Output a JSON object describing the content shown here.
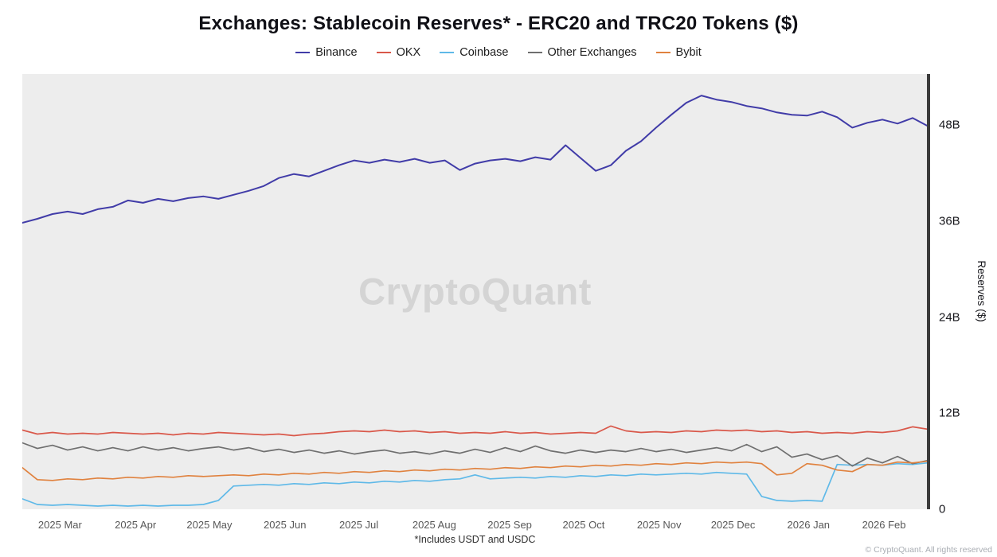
{
  "header": {
    "title": "Exchanges: Stablecoin Reserves* - ERC20 and TRC20 Tokens ($)"
  },
  "chart_data": {
    "type": "line",
    "title": "Exchanges: Stablecoin Reserves* - ERC20 and TRC20 Tokens ($)",
    "watermark": "CryptoQuant",
    "ylabel": "Reserves ($)",
    "unit": "billions USD",
    "grid": false,
    "legend_position": "top",
    "ylim": [
      0,
      54.4
    ],
    "y_ticks": [
      {
        "label": "0",
        "value": 0
      },
      {
        "label": "12B",
        "value": 12
      },
      {
        "label": "24B",
        "value": 24
      },
      {
        "label": "36B",
        "value": 36
      },
      {
        "label": "48B",
        "value": 48
      }
    ],
    "x_ticks": [
      {
        "label": "2025 Mar",
        "pos": 2.5
      },
      {
        "label": "2025 Apr",
        "pos": 7.5
      },
      {
        "label": "2025 May",
        "pos": 12.4
      },
      {
        "label": "2025 Jun",
        "pos": 17.4
      },
      {
        "label": "2025 Jul",
        "pos": 22.3
      },
      {
        "label": "2025 Aug",
        "pos": 27.3
      },
      {
        "label": "2025 Sep",
        "pos": 32.3
      },
      {
        "label": "2025 Oct",
        "pos": 37.2
      },
      {
        "label": "2025 Nov",
        "pos": 42.2
      },
      {
        "label": "2025 Dec",
        "pos": 47.1
      },
      {
        "label": "2026 Jan",
        "pos": 52.1
      },
      {
        "label": "2026 Feb",
        "pos": 57.1
      }
    ],
    "series": [
      {
        "name": "Binance",
        "color": "#413CA8",
        "stroke_width": 2,
        "values": [
          35.8,
          36.3,
          36.9,
          37.2,
          36.9,
          37.5,
          37.8,
          38.6,
          38.3,
          38.8,
          38.5,
          38.9,
          39.1,
          38.8,
          39.3,
          39.8,
          40.4,
          41.4,
          41.9,
          41.6,
          42.3,
          43.0,
          43.6,
          43.3,
          43.7,
          43.4,
          43.8,
          43.3,
          43.6,
          42.4,
          43.2,
          43.6,
          43.8,
          43.5,
          44.0,
          43.7,
          45.5,
          43.9,
          42.3,
          43.0,
          44.8,
          46.0,
          47.7,
          49.3,
          50.8,
          51.7,
          51.2,
          50.9,
          50.4,
          50.1,
          49.6,
          49.3,
          49.2,
          49.7,
          49.0,
          47.7,
          48.3,
          48.7,
          48.2,
          48.9,
          47.9
        ]
      },
      {
        "name": "OKX",
        "color": "#D9584A",
        "stroke_width": 1.7,
        "values": [
          9.9,
          9.4,
          9.6,
          9.4,
          9.5,
          9.4,
          9.6,
          9.5,
          9.4,
          9.5,
          9.3,
          9.5,
          9.4,
          9.6,
          9.5,
          9.4,
          9.3,
          9.4,
          9.2,
          9.4,
          9.5,
          9.7,
          9.8,
          9.7,
          9.9,
          9.7,
          9.8,
          9.6,
          9.7,
          9.5,
          9.6,
          9.5,
          9.7,
          9.5,
          9.6,
          9.4,
          9.5,
          9.6,
          9.5,
          10.4,
          9.8,
          9.6,
          9.7,
          9.6,
          9.8,
          9.7,
          9.9,
          9.8,
          9.9,
          9.7,
          9.8,
          9.6,
          9.7,
          9.5,
          9.6,
          9.5,
          9.7,
          9.6,
          9.8,
          10.3,
          10.0
        ]
      },
      {
        "name": "Coinbase",
        "color": "#5FB9E8",
        "stroke_width": 1.7,
        "values": [
          1.3,
          0.6,
          0.5,
          0.6,
          0.5,
          0.4,
          0.5,
          0.4,
          0.5,
          0.4,
          0.5,
          0.5,
          0.6,
          1.1,
          2.9,
          3.0,
          3.1,
          3.0,
          3.2,
          3.1,
          3.3,
          3.2,
          3.4,
          3.3,
          3.5,
          3.4,
          3.6,
          3.5,
          3.7,
          3.8,
          4.3,
          3.8,
          3.9,
          4.0,
          3.9,
          4.1,
          4.0,
          4.2,
          4.1,
          4.3,
          4.2,
          4.4,
          4.3,
          4.4,
          4.5,
          4.4,
          4.6,
          4.5,
          4.4,
          1.6,
          1.1,
          1.0,
          1.1,
          1.0,
          5.6,
          5.5,
          5.6,
          5.5,
          5.7,
          5.6,
          5.8
        ]
      },
      {
        "name": "Other Exchanges",
        "color": "#6F6F6F",
        "stroke_width": 1.7,
        "values": [
          8.3,
          7.6,
          8.0,
          7.4,
          7.8,
          7.3,
          7.7,
          7.3,
          7.8,
          7.4,
          7.7,
          7.3,
          7.6,
          7.8,
          7.4,
          7.7,
          7.2,
          7.5,
          7.1,
          7.4,
          7.0,
          7.3,
          6.9,
          7.2,
          7.4,
          7.0,
          7.2,
          6.9,
          7.3,
          7.0,
          7.5,
          7.1,
          7.7,
          7.2,
          7.9,
          7.3,
          7.0,
          7.4,
          7.1,
          7.4,
          7.2,
          7.6,
          7.2,
          7.5,
          7.1,
          7.4,
          7.7,
          7.3,
          8.1,
          7.2,
          7.8,
          6.5,
          6.9,
          6.2,
          6.7,
          5.4,
          6.4,
          5.8,
          6.6,
          5.7,
          6.1
        ]
      },
      {
        "name": "Bybit",
        "color": "#E0823F",
        "stroke_width": 1.7,
        "values": [
          5.2,
          3.7,
          3.6,
          3.8,
          3.7,
          3.9,
          3.8,
          4.0,
          3.9,
          4.1,
          4.0,
          4.2,
          4.1,
          4.2,
          4.3,
          4.2,
          4.4,
          4.3,
          4.5,
          4.4,
          4.6,
          4.5,
          4.7,
          4.6,
          4.8,
          4.7,
          4.9,
          4.8,
          5.0,
          4.9,
          5.1,
          5.0,
          5.2,
          5.1,
          5.3,
          5.2,
          5.4,
          5.3,
          5.5,
          5.4,
          5.6,
          5.5,
          5.7,
          5.6,
          5.8,
          5.7,
          5.9,
          5.8,
          5.9,
          5.7,
          4.3,
          4.5,
          5.7,
          5.5,
          4.9,
          4.7,
          5.6,
          5.5,
          5.9,
          5.8,
          6.0
        ]
      }
    ]
  },
  "footer": {
    "footnote": "*Includes USDT and USDC",
    "copyright": "© CryptoQuant. All rights reserved"
  }
}
